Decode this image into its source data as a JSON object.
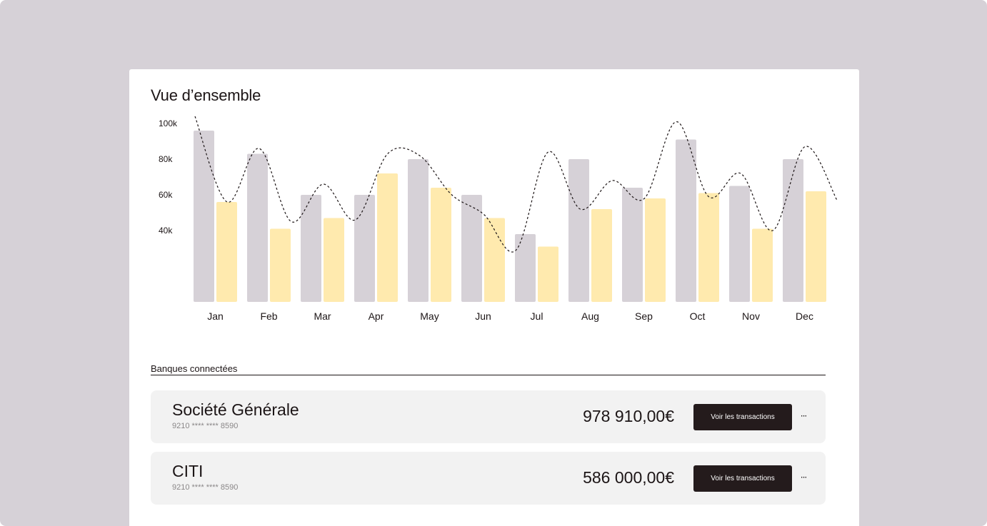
{
  "overview": {
    "title": "Vue d’ensemble"
  },
  "chart_data": {
    "type": "bar",
    "categories": [
      "Jan",
      "Feb",
      "Mar",
      "Apr",
      "May",
      "Jun",
      "Jul",
      "Aug",
      "Sep",
      "Oct",
      "Nov",
      "Dec"
    ],
    "series": [
      {
        "values": [
          96,
          83,
          60,
          60,
          80,
          60,
          38,
          80,
          64,
          91,
          65,
          80
        ],
        "color": "#d6d1d7"
      },
      {
        "values": [
          56,
          41,
          47,
          72,
          64,
          47,
          31,
          52,
          58,
          61,
          41,
          62
        ],
        "color": "#ffeaae"
      }
    ],
    "trend_line": {
      "style": "dashed",
      "color": "#1c1516",
      "values": [
        104,
        56,
        86,
        45,
        66,
        46,
        83,
        82,
        60,
        49,
        29,
        84,
        52,
        68,
        58,
        101,
        59,
        72,
        40,
        87,
        57
      ]
    },
    "yticks": [
      "100k",
      "80k",
      "60k",
      "40k"
    ],
    "ytick_values": [
      100,
      80,
      60,
      40
    ],
    "ylim": [
      0,
      108
    ],
    "grid": false,
    "legend": "none"
  },
  "banks_section": {
    "title": "Banques connectées",
    "banks": [
      {
        "name": "Société Générale",
        "account": "9210 **** **** 8590",
        "amount": "978 910,00€",
        "button_label": "Voir les transactions",
        "more_label": "···"
      },
      {
        "name": "CITI",
        "account": "9210 **** **** 8590",
        "amount": "586 000,00€",
        "button_label": "Voir les transactions",
        "more_label": "···"
      }
    ]
  }
}
